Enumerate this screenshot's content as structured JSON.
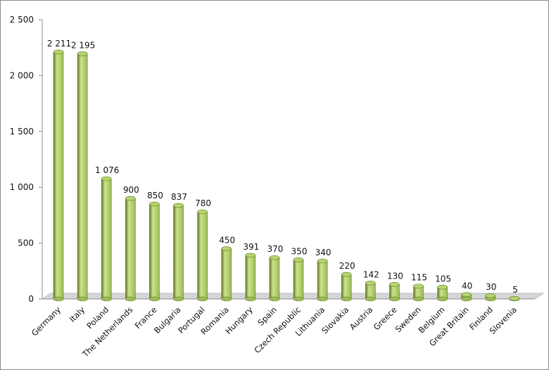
{
  "chart_data": {
    "type": "bar",
    "categories": [
      "Germany",
      "Italy",
      "Poland",
      "The Netherlands",
      "France",
      "Bulgaria",
      "Portugal",
      "Romania",
      "Hungary",
      "Spain",
      "Czech Republic",
      "Lithuania",
      "Slovakia",
      "Austria",
      "Greece",
      "Sweden",
      "Belgium",
      "Great Britain",
      "Finland",
      "Slovenia"
    ],
    "values": [
      2211,
      2195,
      1076,
      900,
      850,
      837,
      780,
      450,
      391,
      370,
      350,
      340,
      220,
      142,
      130,
      115,
      105,
      40,
      30,
      5
    ],
    "value_labels": [
      "2 211",
      "2 195",
      "1 076",
      "900",
      "850",
      "837",
      "780",
      "450",
      "391",
      "370",
      "350",
      "340",
      "220",
      "142",
      "130",
      "115",
      "105",
      "40",
      "30",
      "5"
    ],
    "yticks": [
      0,
      500,
      1000,
      1500,
      2000,
      2500
    ],
    "ytick_labels": [
      "0",
      "500",
      "1 000",
      "1 500",
      "2 000",
      "2 500"
    ],
    "ylim": [
      0,
      2500
    ],
    "title": "",
    "xlabel": "",
    "ylabel": "",
    "grid": false,
    "legend": "none",
    "style": "3d-cylinder",
    "colors": {
      "bar_light": "#cde38a",
      "bar_mid": "#9bbb59",
      "bar_dark": "#5f7a2a",
      "bar_top": "#b7d46e",
      "floor": "#d6d6d6",
      "axis": "#8c8c8c"
    }
  }
}
